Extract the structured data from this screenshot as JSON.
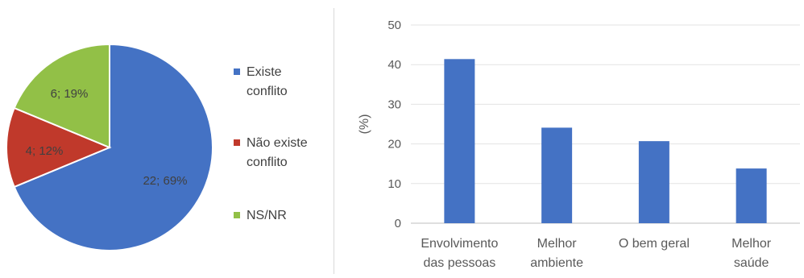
{
  "chart_data": [
    {
      "type": "pie",
      "slices": [
        {
          "name": "Existe conflito",
          "legend_lines": [
            "Existe",
            "conflito"
          ],
          "value": 22,
          "percent": 69,
          "label": "22; 69%",
          "color": "#4472c4"
        },
        {
          "name": "Não existe conflito",
          "legend_lines": [
            "Não existe",
            "conflito"
          ],
          "value": 4,
          "percent": 12,
          "label": "4; 12%",
          "color": "#c0392b"
        },
        {
          "name": "NS/NR",
          "legend_lines": [
            "NS/NR"
          ],
          "value": 6,
          "percent": 19,
          "label": "6; 19%",
          "color": "#92c047"
        }
      ],
      "legend_placement": "right"
    },
    {
      "type": "bar",
      "categories": [
        {
          "name": "Envolvimento das pessoas",
          "lines": [
            "Envolvimento",
            "das pessoas"
          ]
        },
        {
          "name": "Melhor ambiente",
          "lines": [
            "Melhor",
            "ambiente"
          ]
        },
        {
          "name": "O bem geral",
          "lines": [
            "O bem geral"
          ]
        },
        {
          "name": "Melhor saúde",
          "lines": [
            "Melhor",
            "saúde"
          ]
        }
      ],
      "values": [
        41.4,
        24.1,
        20.7,
        13.8
      ],
      "ylabel": "(%)",
      "ylim": [
        0,
        50
      ],
      "yticks": [
        0,
        10,
        20,
        30,
        40,
        50
      ],
      "grid": true,
      "bar_color": "#4472c4"
    }
  ]
}
